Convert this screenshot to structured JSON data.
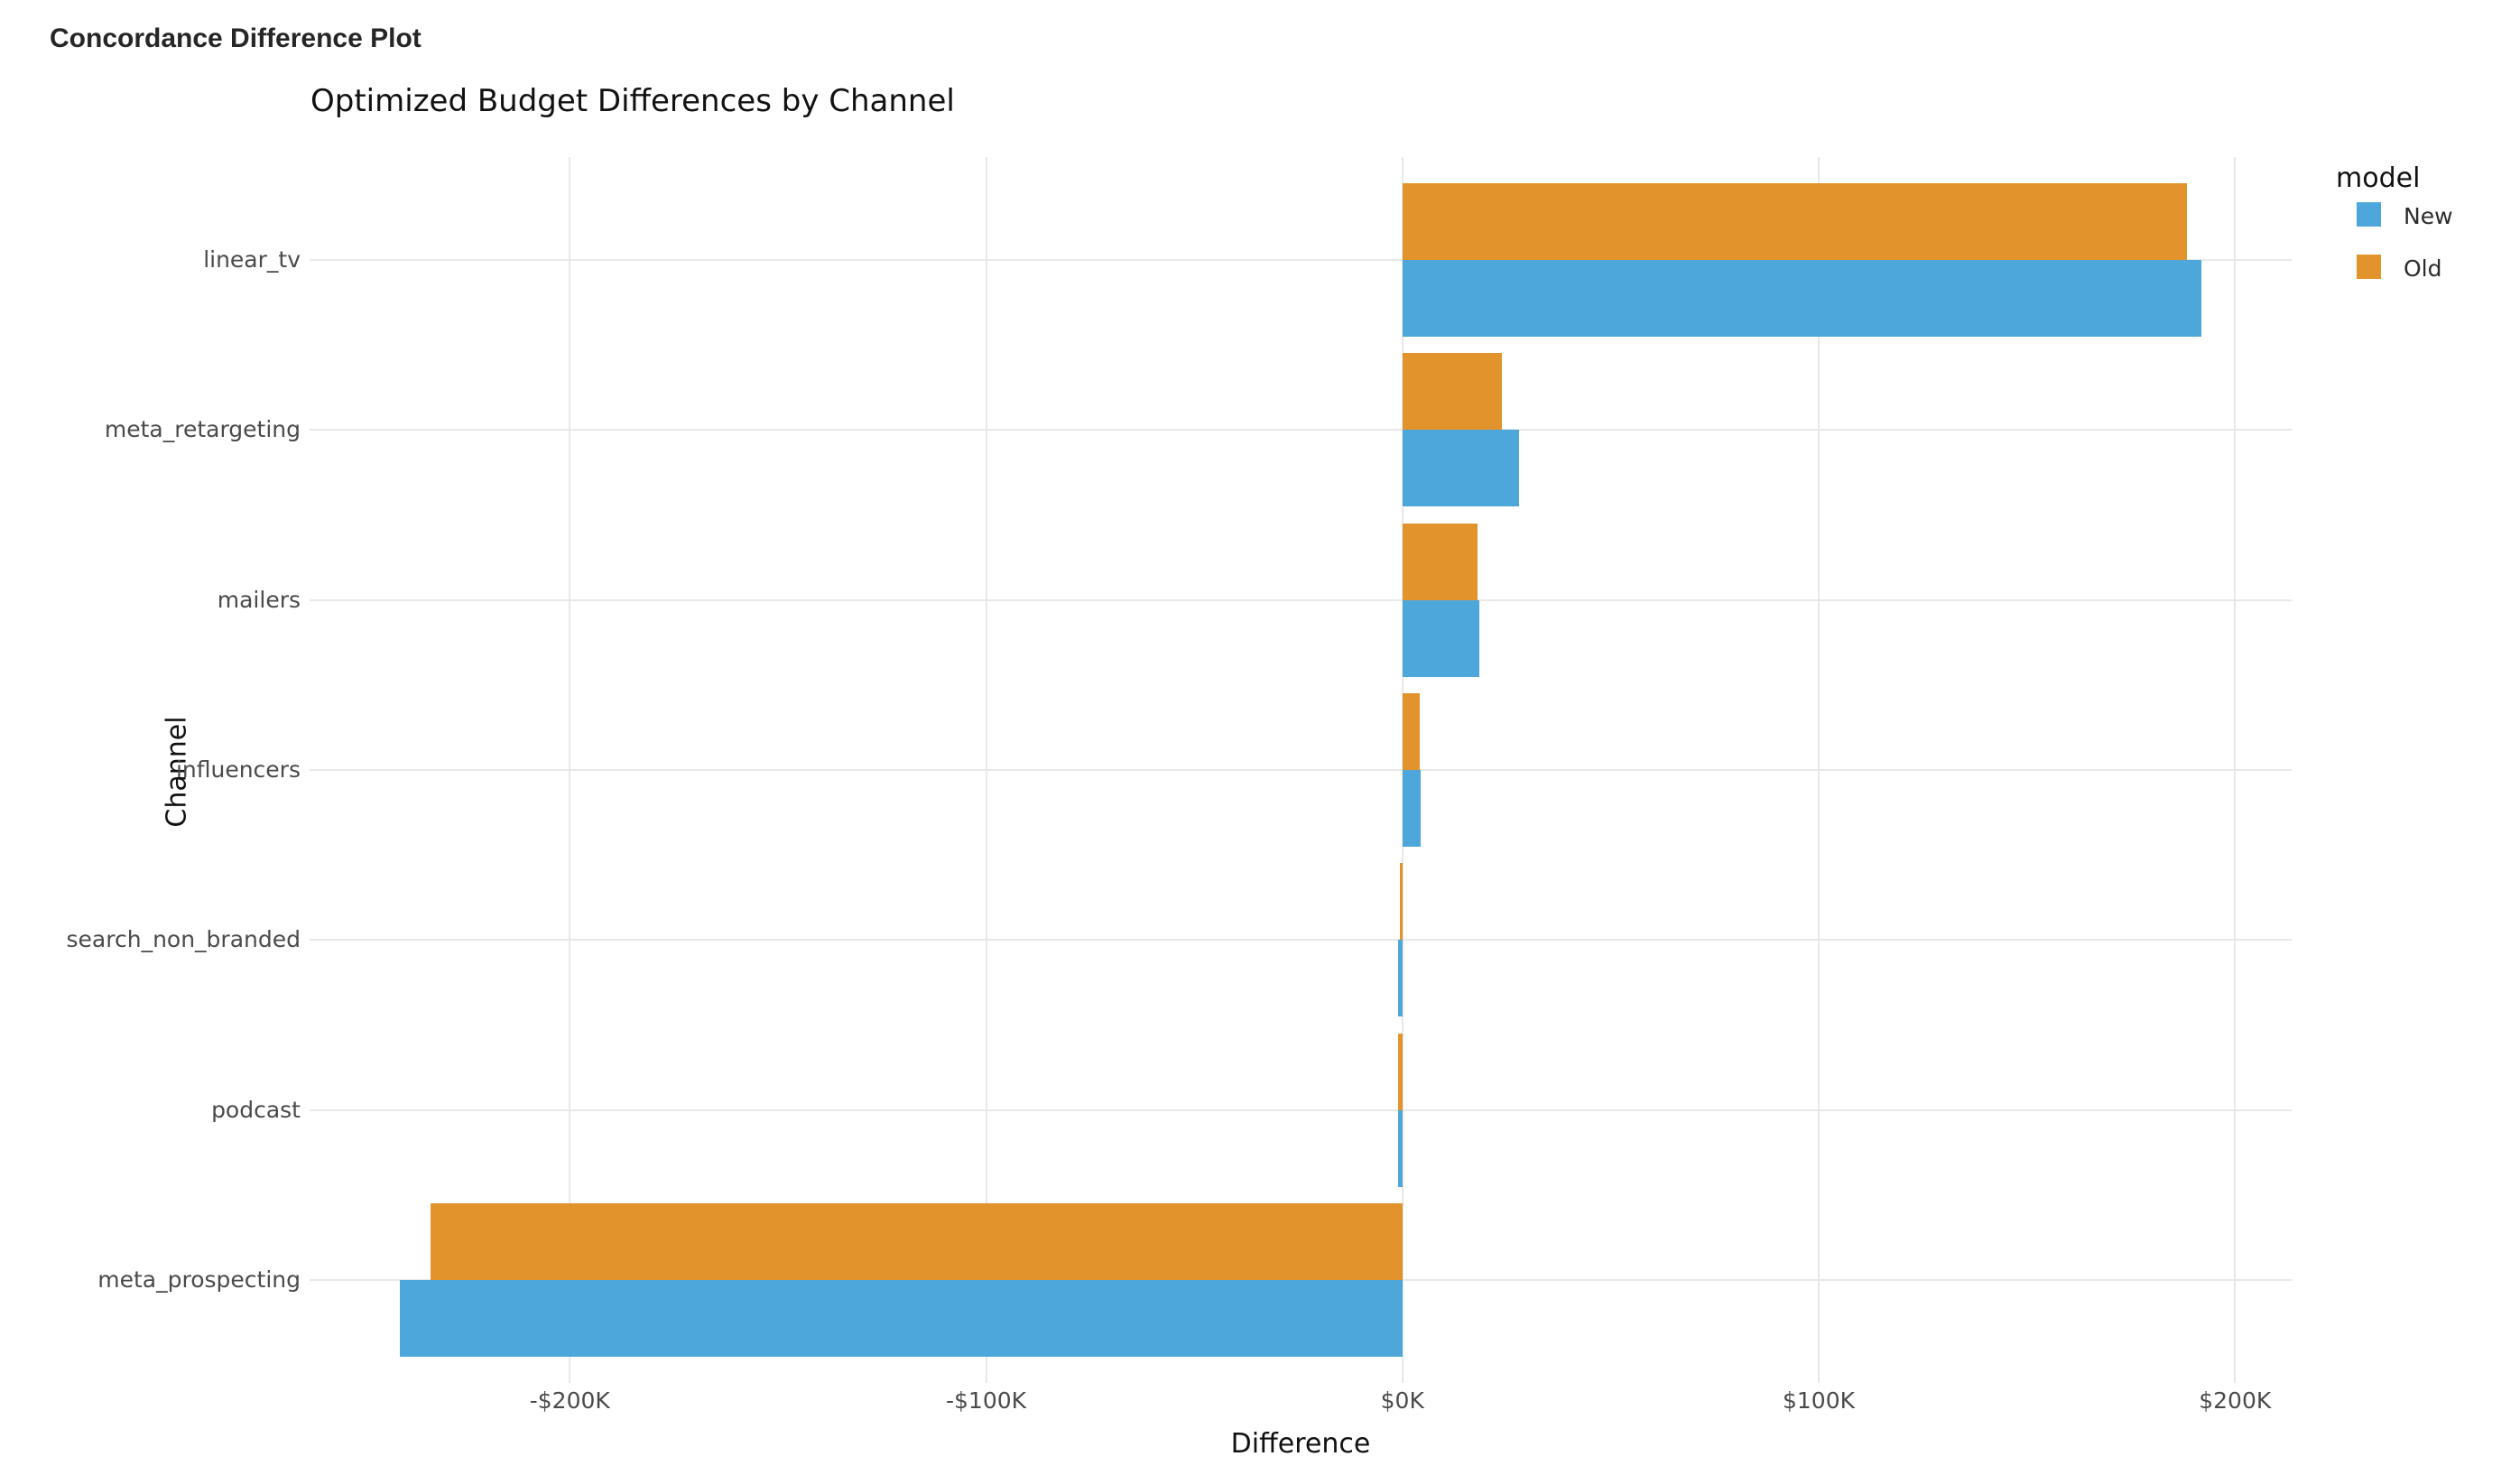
{
  "page": {
    "header_title": "Concordance Difference Plot"
  },
  "chart_data": {
    "type": "bar",
    "orientation": "horizontal",
    "title": "Optimized Budget Differences by Channel",
    "xlabel": "Difference",
    "ylabel": "Channel",
    "legend_title": "model",
    "legend_position": "right",
    "grid": true,
    "background": "#ffffff",
    "gridline_color": "#e8e8e8",
    "categories": [
      "linear_tv",
      "meta_retargeting",
      "mailers",
      "influencers",
      "search_non_branded",
      "podcast",
      "meta_prospecting"
    ],
    "series": [
      {
        "name": "New",
        "color": "#4DA7DB",
        "values": [
          192000,
          28000,
          18500,
          4400,
          -1100,
          -1000,
          -240800
        ]
      },
      {
        "name": "Old",
        "color": "#E2932C",
        "values": [
          188500,
          24000,
          18000,
          4100,
          -600,
          -1100,
          -233400
        ]
      }
    ],
    "x_ticks": [
      -200000,
      -100000,
      0,
      100000,
      200000
    ],
    "x_tick_labels": [
      "-$200K",
      "-$100K",
      "$0K",
      "$100K",
      "$200K"
    ],
    "xlim": [
      -262500,
      213600
    ]
  }
}
